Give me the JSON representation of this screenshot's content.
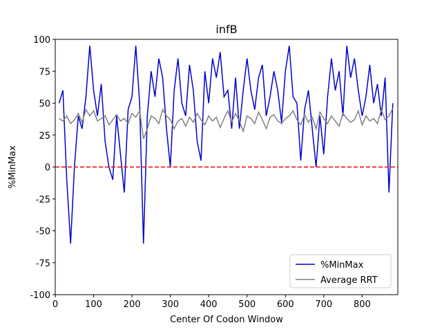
{
  "chart_data": {
    "type": "line",
    "title": "infB",
    "x_label": "Center Of Codon Window",
    "y_label": "%MinMax",
    "x": [
      10,
      20,
      30,
      40,
      50,
      60,
      70,
      80,
      90,
      100,
      110,
      120,
      130,
      140,
      150,
      160,
      170,
      180,
      190,
      200,
      210,
      220,
      230,
      240,
      250,
      260,
      270,
      280,
      290,
      300,
      310,
      320,
      330,
      340,
      350,
      360,
      370,
      380,
      390,
      400,
      410,
      420,
      430,
      440,
      450,
      460,
      470,
      480,
      490,
      500,
      510,
      520,
      530,
      540,
      550,
      560,
      570,
      580,
      590,
      600,
      610,
      620,
      630,
      640,
      650,
      660,
      670,
      680,
      690,
      700,
      710,
      720,
      730,
      740,
      750,
      760,
      770,
      780,
      790,
      800,
      810,
      820,
      830,
      840,
      850,
      860,
      870,
      880
    ],
    "series": [
      {
        "name": "%MinMax",
        "color": "#0000cd",
        "values": [
          50,
          60,
          -10,
          -60,
          0,
          40,
          30,
          55,
          95,
          60,
          40,
          65,
          20,
          0,
          -10,
          40,
          10,
          -20,
          45,
          55,
          95,
          50,
          -60,
          40,
          75,
          55,
          85,
          70,
          30,
          0,
          60,
          85,
          50,
          40,
          80,
          60,
          20,
          5,
          75,
          50,
          85,
          70,
          90,
          55,
          60,
          30,
          70,
          30,
          60,
          85,
          60,
          45,
          70,
          80,
          40,
          55,
          75,
          60,
          35,
          75,
          95,
          55,
          50,
          5,
          45,
          60,
          30,
          0,
          40,
          10,
          55,
          85,
          60,
          75,
          40,
          95,
          70,
          85,
          60,
          40,
          55,
          80,
          50,
          65,
          40,
          70,
          -20,
          50
        ]
      },
      {
        "name": "Average RRT",
        "color": "#808080",
        "values": [
          38,
          36,
          40,
          34,
          37,
          42,
          35,
          45,
          40,
          44,
          36,
          38,
          40,
          33,
          37,
          41,
          36,
          38,
          34,
          42,
          39,
          44,
          22,
          30,
          40,
          38,
          34,
          45,
          40,
          37,
          30,
          36,
          38,
          32,
          39,
          35,
          42,
          37,
          33,
          40,
          36,
          39,
          31,
          38,
          44,
          35,
          42,
          36,
          28,
          40,
          38,
          34,
          43,
          37,
          30,
          39,
          41,
          36,
          34,
          38,
          40,
          44,
          37,
          33,
          41,
          35,
          39,
          30,
          43,
          38,
          34,
          40,
          36,
          32,
          42,
          38,
          35,
          37,
          44,
          33,
          40,
          36,
          38,
          34,
          45,
          37,
          40,
          46
        ]
      }
    ],
    "hline": {
      "value": 0,
      "color": "#ff0000",
      "style": "dashed"
    },
    "xlim": [
      0,
      893
    ],
    "ylim": [
      -100,
      100
    ],
    "xticks": [
      0,
      100,
      200,
      300,
      400,
      500,
      600,
      700,
      800
    ],
    "yticks": [
      -100,
      -75,
      -50,
      -25,
      0,
      25,
      50,
      75,
      100
    ],
    "legend": "lower right"
  }
}
